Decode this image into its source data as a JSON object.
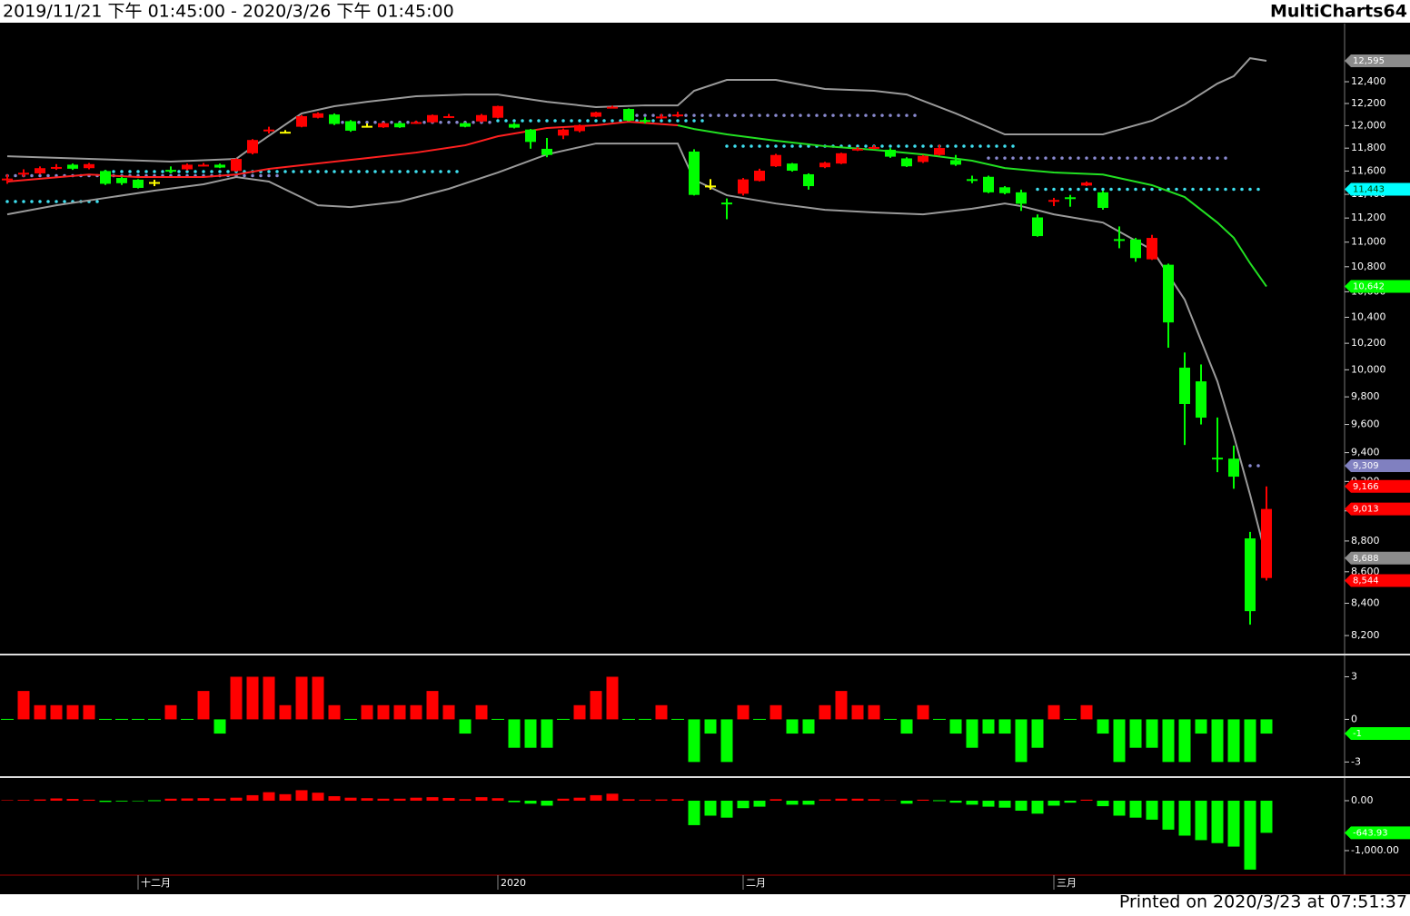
{
  "header": {
    "range": "2019/11/21 下午 01:45:00 - 2020/3/26 下午 01:45:00",
    "app": "MultiCharts64"
  },
  "footer": "Printed on 2020/3/23 at 07:51:37",
  "chart_data": [
    {
      "type": "candlestick",
      "categories": [
        null,
        null,
        null,
        null,
        null,
        null,
        null,
        null,
        "十二月",
        null,
        null,
        null,
        null,
        null,
        null,
        null,
        null,
        null,
        null,
        null,
        null,
        null,
        null,
        null,
        null,
        null,
        null,
        null,
        null,
        null,
        "2020",
        null,
        null,
        null,
        null,
        null,
        null,
        null,
        null,
        null,
        null,
        null,
        null,
        null,
        null,
        "二月",
        null,
        null,
        null,
        null,
        null,
        null,
        null,
        null,
        null,
        null,
        null,
        null,
        null,
        null,
        null,
        null,
        null,
        null,
        "三月",
        null,
        null,
        null,
        null,
        null,
        null,
        null,
        null,
        null,
        null,
        null,
        null,
        null
      ],
      "open": [
        11530,
        11580,
        11580,
        11630,
        11655,
        11625,
        11600,
        11540,
        11525,
        11505,
        11610,
        11615,
        11650,
        11655,
        11600,
        11755,
        11955,
        11945,
        11990,
        12071,
        12100,
        12040,
        11998,
        11985,
        12022,
        12025,
        12030,
        12080,
        12022,
        12038,
        12071,
        12014,
        11965,
        11794,
        11911,
        11951,
        12080,
        12168,
        12150,
        12050,
        12080,
        12090,
        11770,
        11475,
        11330,
        11405,
        11515,
        11641,
        11665,
        11572,
        11633,
        11665,
        11790,
        11805,
        11786,
        11710,
        11679,
        11740,
        11695,
        11530,
        11550,
        11460,
        11417,
        11205,
        11345,
        11375,
        11475,
        11417,
        11025,
        11022,
        10860,
        10816,
        10016,
        9914,
        9365,
        9358,
        8817,
        8560
      ],
      "high": [
        11570,
        11615,
        11640,
        11660,
        11665,
        11670,
        11610,
        11550,
        11530,
        11525,
        11640,
        11665,
        11670,
        11665,
        11710,
        11880,
        11990,
        11960,
        12095,
        12120,
        12110,
        12050,
        12020,
        12030,
        12030,
        12045,
        12100,
        12105,
        12030,
        12105,
        12180,
        12025,
        11970,
        11890,
        11975,
        12010,
        12125,
        12180,
        12155,
        12075,
        12105,
        12125,
        11790,
        11530,
        11365,
        11540,
        11620,
        11750,
        11670,
        11580,
        11680,
        11760,
        11810,
        11825,
        11800,
        11720,
        11740,
        11830,
        11740,
        11560,
        11560,
        11470,
        11440,
        11230,
        11370,
        11395,
        11510,
        11430,
        11130,
        11035,
        11060,
        10825,
        10130,
        10040,
        9650,
        9450,
        8860,
        9166
      ],
      "low": [
        11490,
        11550,
        11570,
        11610,
        11610,
        11615,
        11480,
        11480,
        11450,
        11470,
        11580,
        11605,
        11640,
        11625,
        11595,
        11745,
        11930,
        11935,
        11985,
        12065,
        12005,
        11945,
        11985,
        11980,
        11980,
        12015,
        12025,
        12070,
        11985,
        12030,
        12065,
        11975,
        11795,
        11720,
        11880,
        11940,
        12075,
        12155,
        12040,
        12020,
        12060,
        12075,
        11390,
        11440,
        11190,
        11390,
        11510,
        11635,
        11595,
        11440,
        11625,
        11660,
        11775,
        11790,
        11715,
        11635,
        11670,
        11735,
        11645,
        11495,
        11410,
        11400,
        11260,
        11045,
        11300,
        11295,
        11470,
        11270,
        10950,
        10840,
        10855,
        10166,
        9454,
        9600,
        9264,
        9150,
        8267,
        8544
      ],
      "close": [
        11535,
        11585,
        11625,
        11635,
        11620,
        11660,
        11490,
        11495,
        11455,
        11505,
        11600,
        11655,
        11655,
        11630,
        11705,
        11872,
        11965,
        11945,
        12085,
        12111,
        12015,
        11955,
        11998,
        12022,
        11985,
        12032,
        12095,
        12085,
        11990,
        12095,
        12177,
        11982,
        11855,
        11740,
        11965,
        12005,
        12120,
        12170,
        12045,
        12045,
        12082,
        12100,
        11395,
        11475,
        11320,
        11528,
        11603,
        11740,
        11603,
        11470,
        11672,
        11755,
        11795,
        11810,
        11725,
        11641,
        11732,
        11801,
        11655,
        11525,
        11417,
        11410,
        11320,
        11050,
        11352,
        11370,
        11500,
        11285,
        11020,
        10870,
        11035,
        10360,
        9748,
        9649,
        9355,
        9233,
        8351,
        9013
      ],
      "up_color": "#ff0000",
      "down_color": "#00ff00",
      "doji_color": "#ffff00",
      "log_scale": true,
      "ylim": [
        8090,
        12950
      ],
      "yticks": [
        {
          "value": 8200,
          "label": "8,200"
        },
        {
          "value": 8400,
          "label": "8,400"
        },
        {
          "value": 8600,
          "label": "8,600"
        },
        {
          "value": 8800,
          "label": "8,800"
        },
        {
          "value": 9000,
          "label": "9,000"
        },
        {
          "value": 9200,
          "label": "9,200"
        },
        {
          "value": 9400,
          "label": "9,400"
        },
        {
          "value": 9600,
          "label": "9,600"
        },
        {
          "value": 9800,
          "label": "9,800"
        },
        {
          "value": 10000,
          "label": "10,000"
        },
        {
          "value": 10200,
          "label": "10,200"
        },
        {
          "value": 10400,
          "label": "10,400"
        },
        {
          "value": 10600,
          "label": "10,600"
        },
        {
          "value": 10800,
          "label": "10,800"
        },
        {
          "value": 11000,
          "label": "11,000"
        },
        {
          "value": 11200,
          "label": "11,200"
        },
        {
          "value": 11400,
          "label": "11,400"
        },
        {
          "value": 11600,
          "label": "11,600"
        },
        {
          "value": 11800,
          "label": "11,800"
        },
        {
          "value": 12000,
          "label": "12,000"
        },
        {
          "value": 12200,
          "label": "12,200"
        },
        {
          "value": 12400,
          "label": "12,400"
        }
      ],
      "lines": [
        {
          "color": "#9a9a9a",
          "x": [
            0,
            5,
            10,
            14,
            15,
            18,
            20,
            22,
            25,
            28,
            30,
            33,
            36,
            39,
            41,
            42,
            44,
            47,
            50,
            53,
            55,
            58,
            61,
            64,
            67,
            70,
            72,
            74,
            75,
            76,
            77
          ],
          "values": [
            11729,
            11706,
            11682,
            11706,
            11810,
            12110,
            12175,
            12216,
            12266,
            12282,
            12282,
            12216,
            12167,
            12183,
            12183,
            12316,
            12417,
            12417,
            12333,
            12316,
            12282,
            12110,
            11922,
            11922,
            11922,
            12044,
            12192,
            12383,
            12451,
            12620,
            12595
          ]
        },
        {
          "color": "#9a9a9a",
          "x": [
            0,
            3,
            6,
            9,
            12,
            14,
            16,
            19,
            21,
            24,
            27,
            30,
            33,
            36,
            41,
            42,
            44,
            47,
            50,
            53,
            56,
            59,
            61,
            62,
            64,
            67,
            70,
            72,
            74,
            75,
            76,
            77
          ],
          "values": [
            11231,
            11307,
            11369,
            11431,
            11486,
            11548,
            11509,
            11307,
            11292,
            11339,
            11447,
            11587,
            11745,
            11841,
            11841,
            11525,
            11392,
            11322,
            11269,
            11247,
            11231,
            11278,
            11322,
            11300,
            11231,
            11162,
            10938,
            10538,
            9914,
            9520,
            9109,
            8688
          ]
        },
        {
          "color": "#ff2020",
          "x": [
            0,
            5,
            8,
            12,
            14,
            16,
            19,
            22,
            25,
            28,
            30,
            33,
            36,
            38,
            41
          ],
          "values": [
            11509,
            11570,
            11548,
            11548,
            11570,
            11619,
            11666,
            11713,
            11761,
            11825,
            11905,
            11979,
            12003,
            12035,
            12003
          ]
        },
        {
          "color": "#22e022",
          "x": [
            41,
            42,
            44,
            47,
            50,
            53,
            56,
            59,
            61,
            64,
            67,
            70,
            72,
            74,
            75,
            76,
            77
          ],
          "values": [
            12003,
            11970,
            11922,
            11866,
            11817,
            11785,
            11745,
            11690,
            11626,
            11587,
            11570,
            11478,
            11377,
            11162,
            11036,
            10828,
            10642
          ]
        }
      ],
      "levels": [
        {
          "color": "#3ee0f0",
          "from": 0,
          "to": 6,
          "value": 11339
        },
        {
          "color": "#3ee0f0",
          "from": 6,
          "to": 28,
          "value": 11595
        },
        {
          "color": "#8a8ad0",
          "from": 0,
          "to": 17,
          "value": 11560
        },
        {
          "color": "#8a8ad0",
          "from": 20,
          "to": 30,
          "value": 12030
        },
        {
          "color": "#3ee0f0",
          "from": 30,
          "to": 43,
          "value": 12044
        },
        {
          "color": "#8a8ad0",
          "from": 38,
          "to": 56,
          "value": 12092
        },
        {
          "color": "#3ee0f0",
          "from": 44,
          "to": 62,
          "value": 11817
        },
        {
          "color": "#8a8ad0",
          "from": 60,
          "to": 75,
          "value": 11713
        },
        {
          "color": "#3ee0f0",
          "from": 63,
          "to": 77,
          "value": 11443
        },
        {
          "color": "#8a8ad0",
          "from": 76,
          "to": 77,
          "value": 9309
        }
      ],
      "markers": [
        {
          "value": 12595,
          "label": "12,595",
          "color": "#8c8c8c"
        },
        {
          "value": 11443,
          "label": "11,443",
          "color": "#00ffff"
        },
        {
          "value": 10642,
          "label": "10,642",
          "color": "#00ff00"
        },
        {
          "value": 9309,
          "label": "9,309",
          "color": "#8080c0"
        },
        {
          "value": 9166,
          "label": "9,166",
          "color": "#ff0000"
        },
        {
          "value": 9013,
          "label": "9,013",
          "color": "#ff0000"
        },
        {
          "value": 8688,
          "label": "8,688",
          "color": "#8c8c8c"
        },
        {
          "value": 8544,
          "label": "8,544",
          "color": "#ff0000"
        }
      ]
    },
    {
      "type": "bar",
      "values": [
        0,
        2,
        1,
        1,
        1,
        1,
        0,
        0,
        0,
        0,
        1,
        0,
        2,
        -1,
        3,
        3,
        3,
        1,
        3,
        3,
        1,
        0,
        1,
        1,
        1,
        1,
        2,
        1,
        -1,
        1,
        0,
        -2,
        -2,
        -2,
        0,
        1,
        2,
        3,
        0,
        0,
        1,
        0,
        -3,
        -1,
        -3,
        1,
        0,
        1,
        -1,
        -1,
        1,
        2,
        1,
        1,
        0,
        -1,
        1,
        0,
        -1,
        -2,
        -1,
        -1,
        -3,
        -2,
        1,
        0,
        1,
        -1,
        -3,
        -2,
        -2,
        -3,
        -3,
        -1,
        -3,
        -3,
        -3,
        -1
      ],
      "up_color": "#ff0000",
      "down_color": "#00ff00",
      "ylim": [
        -4,
        4.5
      ],
      "yticks": [
        -3,
        0,
        3
      ],
      "markers": [
        {
          "value": -1,
          "color": "#00ff00"
        }
      ]
    },
    {
      "type": "bar",
      "values": [
        10,
        15,
        25,
        45,
        35,
        20,
        -25,
        -15,
        -10,
        0,
        40,
        45,
        50,
        40,
        60,
        110,
        170,
        130,
        210,
        160,
        90,
        60,
        50,
        40,
        40,
        60,
        70,
        55,
        30,
        70,
        50,
        -30,
        -60,
        -100,
        40,
        60,
        110,
        140,
        30,
        20,
        25,
        30,
        -490,
        -300,
        -340,
        -150,
        -120,
        30,
        -80,
        -80,
        25,
        40,
        40,
        30,
        10,
        -60,
        20,
        0,
        -40,
        -80,
        -120,
        -140,
        -200,
        -260,
        -100,
        -40,
        20,
        -110,
        -300,
        -340,
        -380,
        -580,
        -700,
        -790,
        -850,
        -920,
        -1380,
        -643.93
      ],
      "up_color": "#ff0000",
      "down_color": "#00ff00",
      "ylim": [
        -1455,
        436
      ],
      "yticks": [
        {
          "value": -1000,
          "label": "-1,000.00"
        },
        {
          "value": 0,
          "label": "0.00"
        }
      ],
      "markers": [
        {
          "value": -643.93,
          "color": "#00ff00"
        }
      ]
    }
  ]
}
